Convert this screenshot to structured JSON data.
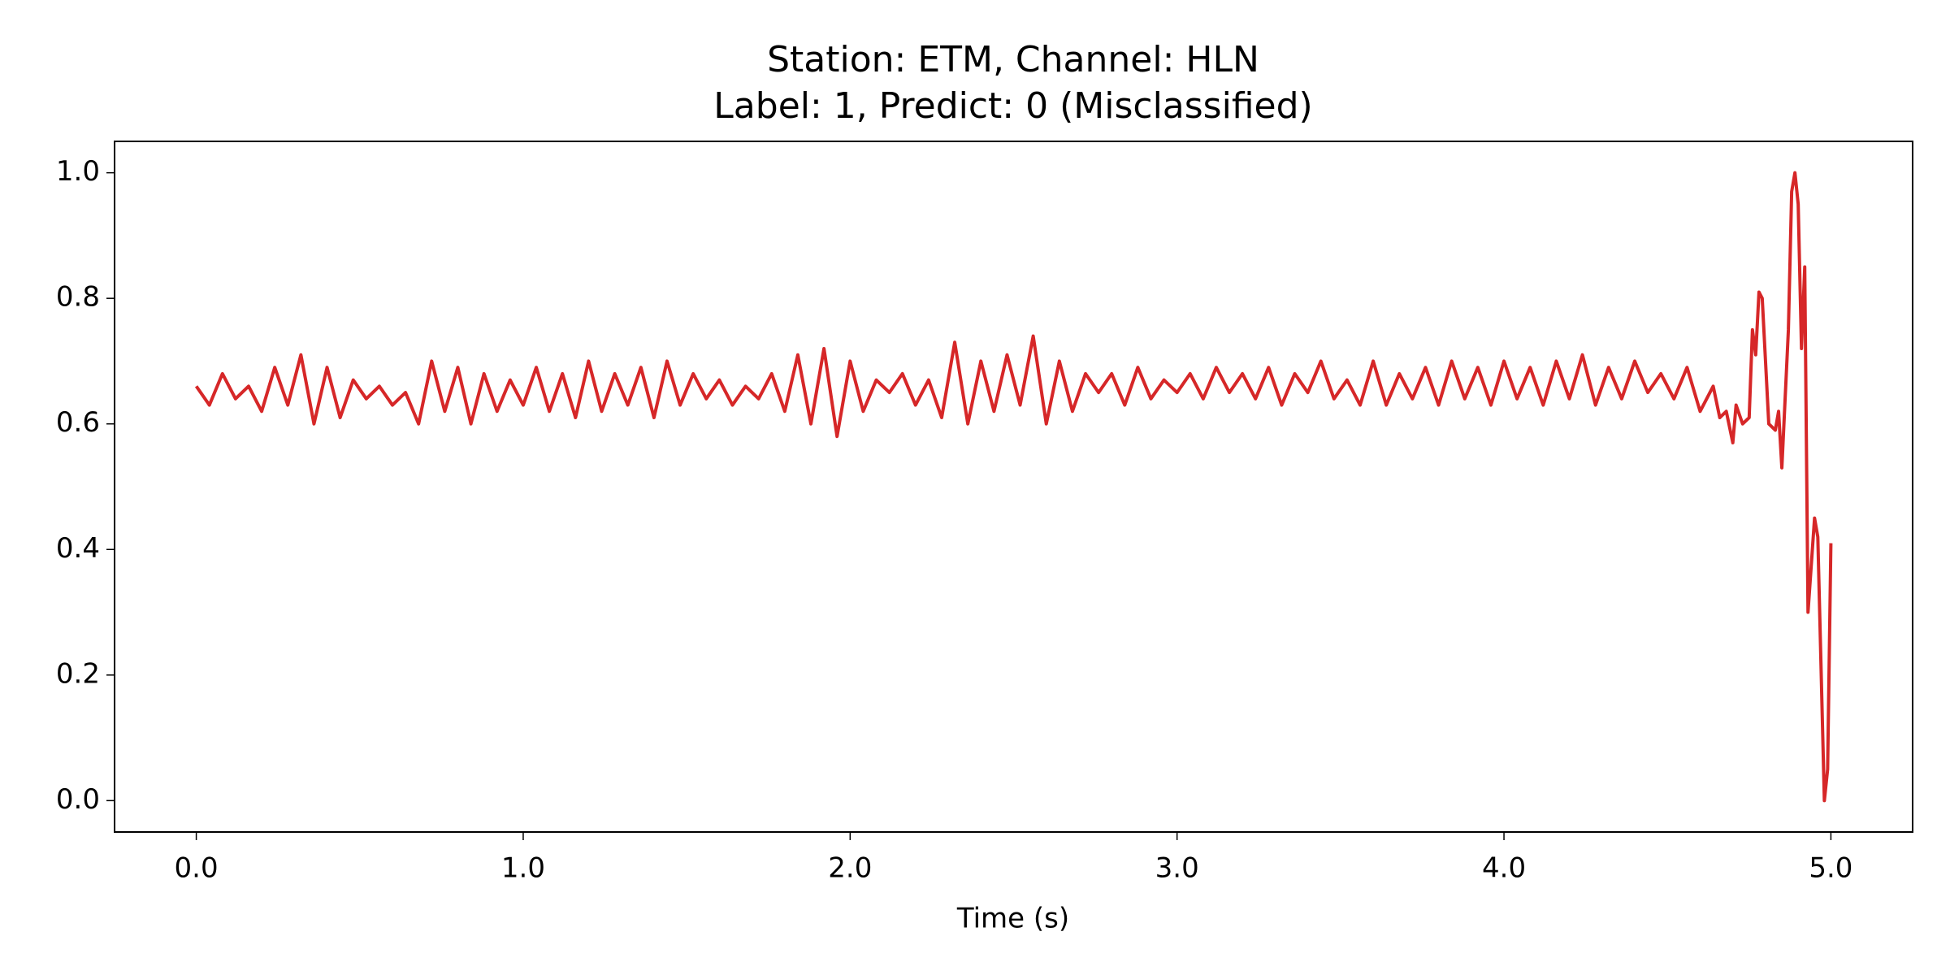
{
  "chart_data": {
    "type": "line",
    "title": "Station: ETM, Channel: HLN",
    "subtitle": "Label: 1, Predict: 0 (Misclassified)",
    "x_label": "Time (s)",
    "x": [
      0,
      0.04,
      0.08,
      0.12,
      0.16,
      0.2,
      0.24,
      0.28,
      0.32,
      0.36,
      0.4,
      0.44,
      0.48,
      0.52,
      0.56,
      0.6,
      0.64,
      0.68,
      0.72,
      0.76,
      0.8,
      0.84,
      0.88,
      0.92,
      0.96,
      1.0,
      1.04,
      1.08,
      1.12,
      1.16,
      1.2,
      1.24,
      1.28,
      1.32,
      1.36,
      1.4,
      1.44,
      1.48,
      1.52,
      1.56,
      1.6,
      1.64,
      1.68,
      1.72,
      1.76,
      1.8,
      1.84,
      1.88,
      1.92,
      1.96,
      2.0,
      2.04,
      2.08,
      2.12,
      2.16,
      2.2,
      2.24,
      2.28,
      2.32,
      2.36,
      2.4,
      2.44,
      2.48,
      2.52,
      2.56,
      2.6,
      2.64,
      2.68,
      2.72,
      2.76,
      2.8,
      2.84,
      2.88,
      2.92,
      2.96,
      3.0,
      3.04,
      3.08,
      3.12,
      3.16,
      3.2,
      3.24,
      3.28,
      3.32,
      3.36,
      3.4,
      3.44,
      3.48,
      3.52,
      3.56,
      3.6,
      3.64,
      3.68,
      3.72,
      3.76,
      3.8,
      3.84,
      3.88,
      3.92,
      3.96,
      4.0,
      4.04,
      4.08,
      4.12,
      4.16,
      4.2,
      4.24,
      4.28,
      4.32,
      4.36,
      4.4,
      4.44,
      4.48,
      4.52,
      4.56,
      4.6,
      4.64,
      4.66,
      4.68,
      4.7,
      4.71,
      4.73,
      4.75,
      4.76,
      4.77,
      4.78,
      4.79,
      4.81,
      4.83,
      4.84,
      4.85,
      4.87,
      4.88,
      4.89,
      4.9,
      4.91,
      4.92,
      4.93,
      4.95,
      4.96,
      4.98,
      4.99,
      5.0
    ],
    "series": [
      {
        "color": "#d62728",
        "values": [
          0.66,
          0.63,
          0.68,
          0.64,
          0.66,
          0.62,
          0.69,
          0.63,
          0.71,
          0.6,
          0.69,
          0.61,
          0.67,
          0.64,
          0.66,
          0.63,
          0.65,
          0.6,
          0.7,
          0.62,
          0.69,
          0.6,
          0.68,
          0.62,
          0.67,
          0.63,
          0.69,
          0.62,
          0.68,
          0.61,
          0.7,
          0.62,
          0.68,
          0.63,
          0.69,
          0.61,
          0.7,
          0.63,
          0.68,
          0.64,
          0.67,
          0.63,
          0.66,
          0.64,
          0.68,
          0.62,
          0.71,
          0.6,
          0.72,
          0.58,
          0.7,
          0.62,
          0.67,
          0.65,
          0.68,
          0.63,
          0.67,
          0.61,
          0.73,
          0.6,
          0.7,
          0.62,
          0.71,
          0.63,
          0.74,
          0.6,
          0.7,
          0.62,
          0.68,
          0.65,
          0.68,
          0.63,
          0.69,
          0.64,
          0.67,
          0.65,
          0.68,
          0.64,
          0.69,
          0.65,
          0.68,
          0.64,
          0.69,
          0.63,
          0.68,
          0.65,
          0.7,
          0.64,
          0.67,
          0.63,
          0.7,
          0.63,
          0.68,
          0.64,
          0.69,
          0.63,
          0.7,
          0.64,
          0.69,
          0.63,
          0.7,
          0.64,
          0.69,
          0.63,
          0.7,
          0.64,
          0.71,
          0.63,
          0.69,
          0.64,
          0.7,
          0.65,
          0.68,
          0.64,
          0.69,
          0.62,
          0.66,
          0.61,
          0.62,
          0.57,
          0.63,
          0.6,
          0.61,
          0.75,
          0.71,
          0.81,
          0.8,
          0.6,
          0.59,
          0.62,
          0.53,
          0.75,
          0.97,
          1.0,
          0.95,
          0.72,
          0.85,
          0.3,
          0.45,
          0.42,
          0.0,
          0.05,
          0.41
        ]
      }
    ],
    "xlim": [
      -0.25,
      5.25
    ],
    "ylim": [
      -0.05,
      1.05
    ],
    "xticks": [
      {
        "value": 0,
        "label": "0.0"
      },
      {
        "value": 1,
        "label": "1.0"
      },
      {
        "value": 2,
        "label": "2.0"
      },
      {
        "value": 3,
        "label": "3.0"
      },
      {
        "value": 4,
        "label": "4.0"
      },
      {
        "value": 5,
        "label": "5.0"
      }
    ],
    "yticks": [
      {
        "value": 0,
        "label": "0.0"
      },
      0.2,
      0.4,
      0.6,
      0.8,
      {
        "value": 1,
        "label": "1.0"
      }
    ]
  }
}
